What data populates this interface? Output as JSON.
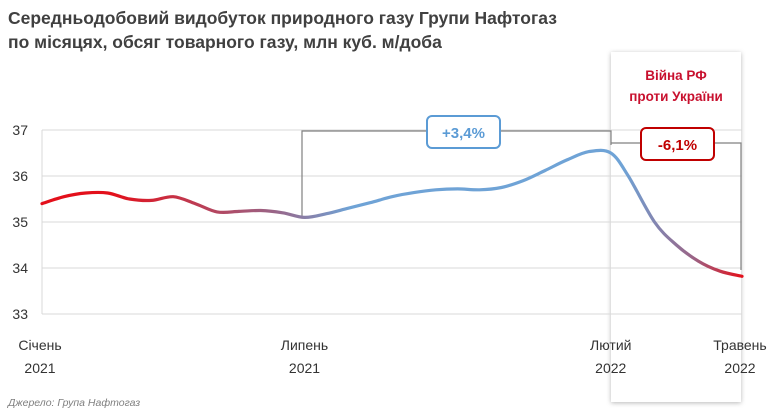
{
  "title_line1": "Середньодобовий видобуток природного газу Групи Нафтогаз",
  "title_line2": "по місяцях, обсяг товарного газу, млн куб. м/доба",
  "source": "Джерело: Група Нафтогаз",
  "colors": {
    "red": "#e3101b",
    "blue": "#6fa3d6",
    "purple": "#9a6486",
    "grid": "#d9d9d9",
    "bracket": "#808080",
    "badge_blue": "#5b9bd5",
    "badge_red": "#c00000"
  },
  "chart_data": {
    "type": "line",
    "title": "Середньодобовий видобуток природного газу Групи Нафтогаз по місяцях, обсяг товарного газу, млн куб. м/доба",
    "ylim": [
      33,
      37
    ],
    "yticks": [
      33,
      34,
      35,
      36,
      37
    ],
    "x_labels": [
      {
        "line1": "Січень",
        "line2": "2021",
        "x": 0
      },
      {
        "line1": "Липень",
        "line2": "2021",
        "x": 6
      },
      {
        "line1": "Лютий",
        "line2": "2022",
        "x": 13
      },
      {
        "line1": "Травень",
        "line2": "2022",
        "x": 16
      }
    ],
    "series": [
      {
        "points": [
          [
            0,
            35.4
          ],
          [
            0.5,
            35.55
          ],
          [
            1,
            35.63
          ],
          [
            1.5,
            35.63
          ],
          [
            2,
            35.5
          ],
          [
            2.5,
            35.47
          ],
          [
            3,
            35.55
          ],
          [
            3.5,
            35.4
          ],
          [
            4,
            35.22
          ],
          [
            4.5,
            35.23
          ],
          [
            5,
            35.25
          ],
          [
            5.5,
            35.2
          ],
          [
            6,
            35.1
          ],
          [
            6.5,
            35.18
          ],
          [
            7,
            35.3
          ],
          [
            7.5,
            35.42
          ],
          [
            8,
            35.55
          ],
          [
            8.5,
            35.64
          ],
          [
            9,
            35.7
          ],
          [
            9.5,
            35.72
          ],
          [
            10,
            35.7
          ],
          [
            10.5,
            35.75
          ],
          [
            11,
            35.9
          ],
          [
            11.5,
            36.12
          ],
          [
            12,
            36.35
          ],
          [
            12.5,
            36.53
          ],
          [
            13,
            36.5
          ],
          [
            13.4,
            36.0
          ],
          [
            14,
            35.0
          ],
          [
            14.5,
            34.5
          ],
          [
            15,
            34.15
          ],
          [
            15.5,
            33.93
          ],
          [
            16,
            33.82
          ]
        ]
      }
    ],
    "annotations": {
      "growth_label": "+3,4%",
      "decline_label": "-6,1%",
      "war_line1": "Війна РФ",
      "war_line2": "проти України"
    }
  }
}
